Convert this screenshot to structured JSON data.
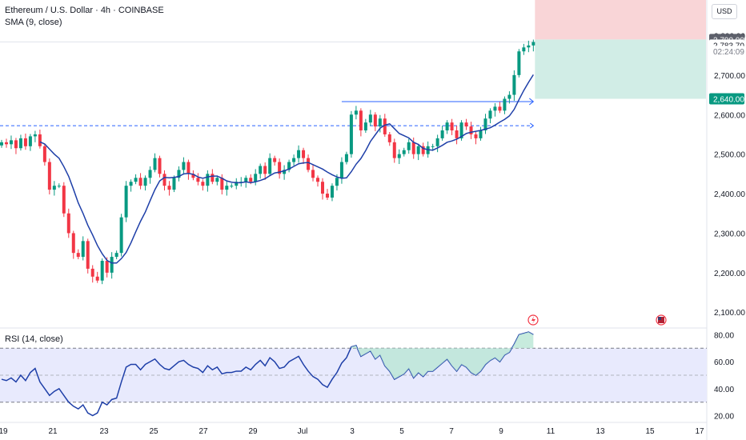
{
  "legend": {
    "symbol": "Ethereum / U.S. Dollar · 4h · COINBASE",
    "sma": "SMA (9, close)",
    "rsi": "RSI (14, close)"
  },
  "currency": "USD",
  "colors": {
    "up": "#089981",
    "down": "#f23645",
    "sma": "#1e3fa8",
    "rsi": "#1e3fa8",
    "rsi_band": "#7e89f3",
    "stop_zone": "#f9d5d7",
    "target_zone": "#d1ede6",
    "line": "#2962ff",
    "grid_border": "#e0e3eb"
  },
  "chart_data": [
    {
      "type": "candlestick",
      "title": "Ethereum / U.S. Dollar · 4h · COINBASE",
      "y_axis": {
        "ylim": [
          2060,
          2890
        ],
        "ticks": [
          2100,
          2200,
          2300,
          2400,
          2500,
          2600,
          2700,
          2800
        ],
        "tick_labels": [
          "2,100.00",
          "2,200.00",
          "2,300.00",
          "2,400.00",
          "2,500.00",
          "2,600.00",
          "2,700.00",
          "2,800.00"
        ]
      },
      "x_axis": {
        "ticks": [
          "19",
          "21",
          "23",
          "25",
          "27",
          "29",
          "Jul",
          "3",
          "5",
          "7",
          "9",
          "11",
          "13",
          "15",
          "17"
        ]
      },
      "price_tags": [
        {
          "label": "2,790.00",
          "value": 2790,
          "style": "gray"
        },
        {
          "label": "2,783.70",
          "value": 2776,
          "style": "current"
        },
        {
          "label": "02:24:09",
          "value": 2760,
          "style": "countdown"
        },
        {
          "label": "2,640.00",
          "value": 2640,
          "style": "green"
        }
      ],
      "horizontal_lines": [
        {
          "value": 2572,
          "style": "dashed"
        },
        {
          "value": 2633,
          "style": "solid-arrow"
        }
      ],
      "position_box": {
        "entry": 2790,
        "target": 2640
      },
      "legend_items": [
        "SMA (9, close)"
      ],
      "event_markers": [
        "lightning-icon",
        "us-flag-icon"
      ],
      "candles_close": [
        2530,
        2525,
        2535,
        2515,
        2540,
        2520,
        2545,
        2550,
        2520,
        2480,
        2410,
        2420,
        2420,
        2350,
        2300,
        2250,
        2240,
        2280,
        2210,
        2190,
        2180,
        2230,
        2200,
        2240,
        2250,
        2340,
        2420,
        2430,
        2440,
        2420,
        2440,
        2460,
        2490,
        2450,
        2420,
        2410,
        2440,
        2460,
        2480,
        2450,
        2440,
        2430,
        2420,
        2450,
        2430,
        2440,
        2410,
        2420,
        2420,
        2430,
        2430,
        2440,
        2430,
        2450,
        2470,
        2450,
        2490,
        2480,
        2450,
        2460,
        2480,
        2490,
        2510,
        2490,
        2460,
        2440,
        2430,
        2400,
        2390,
        2420,
        2440,
        2480,
        2500,
        2600,
        2610,
        2560,
        2580,
        2600,
        2570,
        2590,
        2550,
        2530,
        2490,
        2500,
        2510,
        2530,
        2500,
        2520,
        2500,
        2520,
        2520,
        2540,
        2560,
        2580,
        2560,
        2540,
        2580,
        2570,
        2550,
        2540,
        2560,
        2590,
        2610,
        2620,
        2610,
        2640,
        2650,
        2700,
        2760,
        2770,
        2775,
        2783.7
      ],
      "sma_9_close": "computed from candles_close"
    },
    {
      "type": "line",
      "title": "RSI (14, close)",
      "y_axis": {
        "ylim": [
          15,
          85
        ],
        "ticks": [
          20,
          40,
          60,
          80
        ],
        "tick_labels": [
          "20.00",
          "40.00",
          "60.00",
          "80.00"
        ]
      },
      "bands": {
        "upper": 70,
        "middle": 50,
        "lower": 30
      },
      "values": [
        47,
        46,
        48,
        45,
        50,
        46,
        52,
        55,
        45,
        40,
        35,
        38,
        40,
        35,
        30,
        27,
        25,
        28,
        22,
        20,
        22,
        30,
        28,
        32,
        33,
        45,
        56,
        58,
        58,
        54,
        58,
        60,
        62,
        58,
        55,
        54,
        57,
        60,
        61,
        58,
        56,
        55,
        52,
        57,
        54,
        56,
        51,
        52,
        52,
        53,
        53,
        56,
        54,
        58,
        61,
        57,
        63,
        60,
        55,
        56,
        60,
        62,
        64,
        58,
        53,
        49,
        47,
        43,
        41,
        47,
        52,
        59,
        63,
        71,
        72,
        64,
        66,
        68,
        62,
        65,
        57,
        53,
        47,
        49,
        51,
        55,
        48,
        52,
        49,
        53,
        53,
        56,
        59,
        62,
        57,
        53,
        58,
        56,
        52,
        50,
        53,
        58,
        61,
        63,
        60,
        65,
        67,
        73,
        80,
        81,
        82,
        80
      ]
    }
  ]
}
